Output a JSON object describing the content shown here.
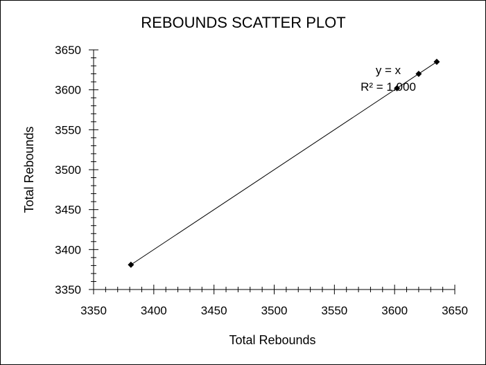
{
  "chart_data": {
    "type": "scatter",
    "title": "REBOUNDS SCATTER PLOT",
    "xlabel": "Total Rebounds",
    "ylabel": "Total Rebounds",
    "xlim": [
      3350,
      3650
    ],
    "ylim": [
      3350,
      3650
    ],
    "x_ticks": [
      "3350",
      "3400",
      "3450",
      "3500",
      "3550",
      "3600",
      "3650"
    ],
    "y_ticks": [
      "3350",
      "3400",
      "3450",
      "3500",
      "3550",
      "3600",
      "3650"
    ],
    "grid": false,
    "legend": "none",
    "series": [
      {
        "points": [
          {
            "x": 3381,
            "y": 3381
          },
          {
            "x": 3602,
            "y": 3602
          },
          {
            "x": 3620,
            "y": 3620
          },
          {
            "x": 3635,
            "y": 3635
          }
        ]
      }
    ],
    "trendline": {
      "type": "linear",
      "x_range": [
        3381,
        3635
      ],
      "slope": 1,
      "intercept": 0
    },
    "annotations": {
      "equation": "y = x",
      "r_squared": "R² = 1.000"
    },
    "colors": {
      "marker": "#000000",
      "line": "#000000",
      "background": "#ffffff"
    }
  }
}
